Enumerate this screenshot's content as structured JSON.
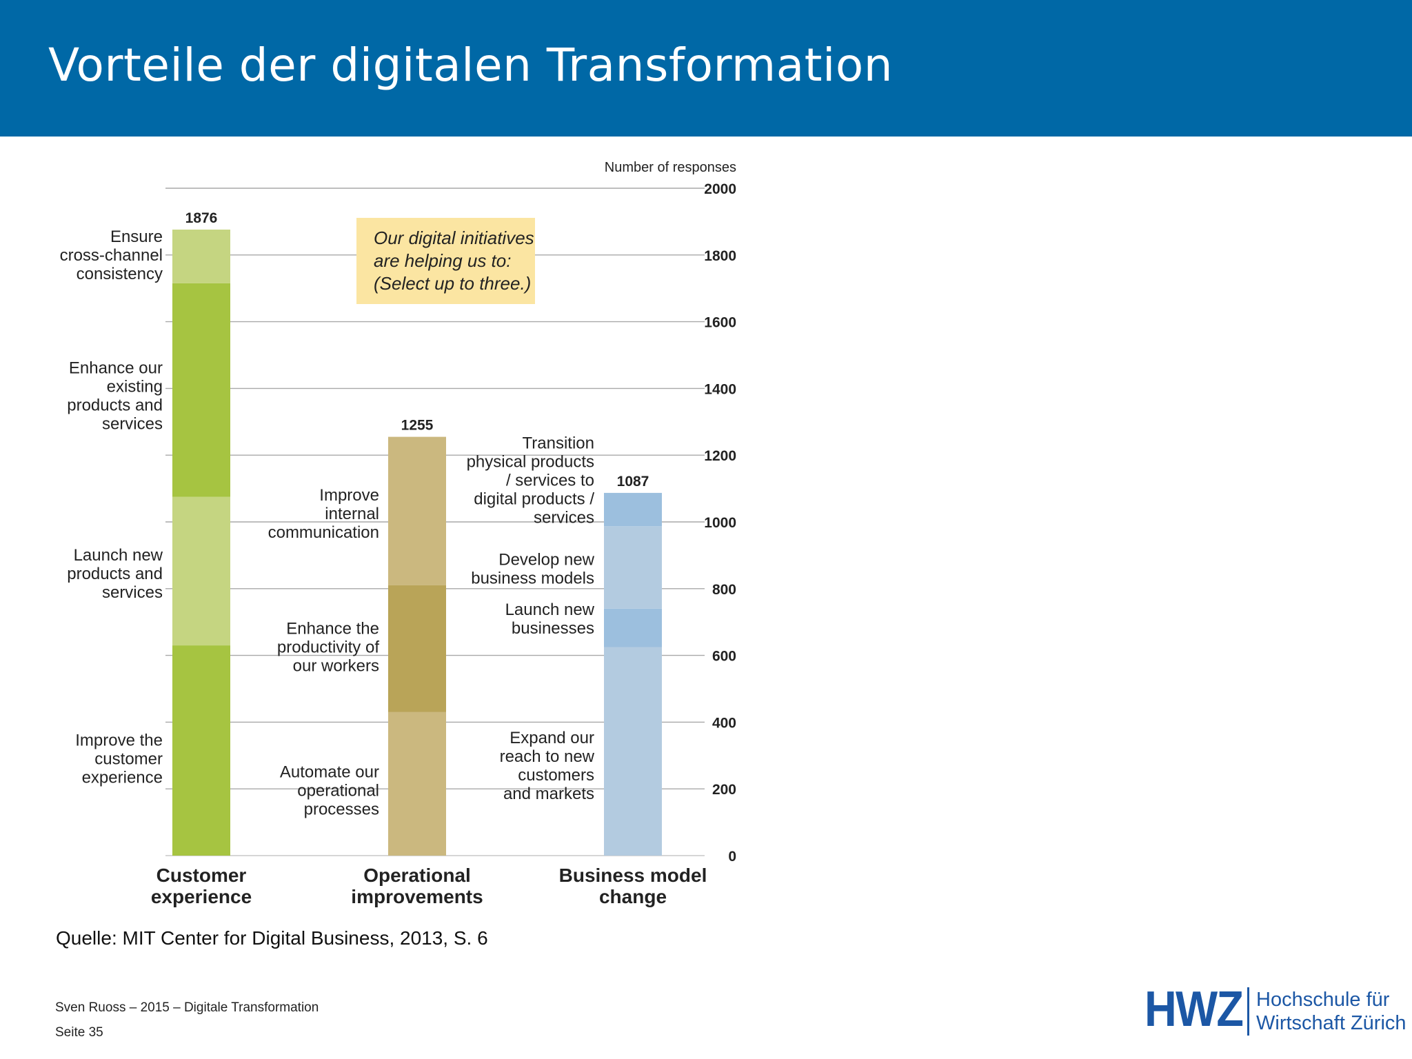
{
  "slide": {
    "title": "Vorteile der digitalen Transformation",
    "source": "Quelle: MIT Center for Digital Business, 2013, S. 6",
    "footer_author": "Sven Ruoss – 2015 – Digitale Transformation",
    "footer_page": "Seite 35",
    "logo": {
      "mark": "HWZ",
      "line1": "Hochschule für",
      "line2": "Wirtschaft Zürich"
    },
    "colors": {
      "header": "#0068a6",
      "logo": "#1c57a5"
    }
  },
  "chart_data": {
    "type": "bar",
    "stacked": true,
    "ylabel": "Number of responses",
    "ylim": [
      0,
      2000
    ],
    "yticks": [
      0,
      200,
      400,
      600,
      800,
      1000,
      1200,
      1400,
      1600,
      1800,
      2000
    ],
    "grid": true,
    "callout": [
      "Our digital initiatives",
      "are helping us to:",
      "(Select up to three.)"
    ],
    "categories": [
      {
        "name": [
          "Customer",
          "experience"
        ],
        "total": 1876,
        "segments": [
          {
            "label": [
              "Improve the",
              "customer",
              "experience"
            ],
            "value": 630,
            "color": "#a6c441"
          },
          {
            "label": [
              "Launch new",
              "products and",
              "services"
            ],
            "value": 445,
            "color": "#c5d581"
          },
          {
            "label": [
              "Enhance our",
              "existing",
              "products and",
              "services"
            ],
            "value": 640,
            "color": "#a6c441"
          },
          {
            "label": [
              "Ensure",
              "cross-channel",
              "consistency"
            ],
            "value": 161,
            "color": "#c5d581"
          }
        ]
      },
      {
        "name": [
          "Operational",
          "improvements"
        ],
        "total": 1255,
        "segments": [
          {
            "label": [
              "Automate our",
              "operational",
              "processes"
            ],
            "value": 430,
            "color": "#cbb87f"
          },
          {
            "label": [
              "Enhance the",
              "productivity of",
              "our workers"
            ],
            "value": 380,
            "color": "#b9a458"
          },
          {
            "label": [
              "Improve",
              "internal",
              "communication"
            ],
            "value": 445,
            "color": "#cbb87f"
          }
        ]
      },
      {
        "name": [
          "Business model",
          "change"
        ],
        "total": 1087,
        "segments": [
          {
            "label": [
              "Expand our",
              "reach to new",
              "customers",
              "and markets"
            ],
            "value": 625,
            "color": "#b3cbe0"
          },
          {
            "label": [
              "Launch new",
              "businesses"
            ],
            "value": 115,
            "color": "#9cbfde"
          },
          {
            "label": [
              "Develop new",
              "business models"
            ],
            "value": 247,
            "color": "#b3cbe0"
          },
          {
            "label": [
              "Transition",
              "physical products",
              "/ services to",
              "digital products /",
              "services"
            ],
            "value": 100,
            "color": "#9cbfde"
          }
        ]
      }
    ]
  }
}
